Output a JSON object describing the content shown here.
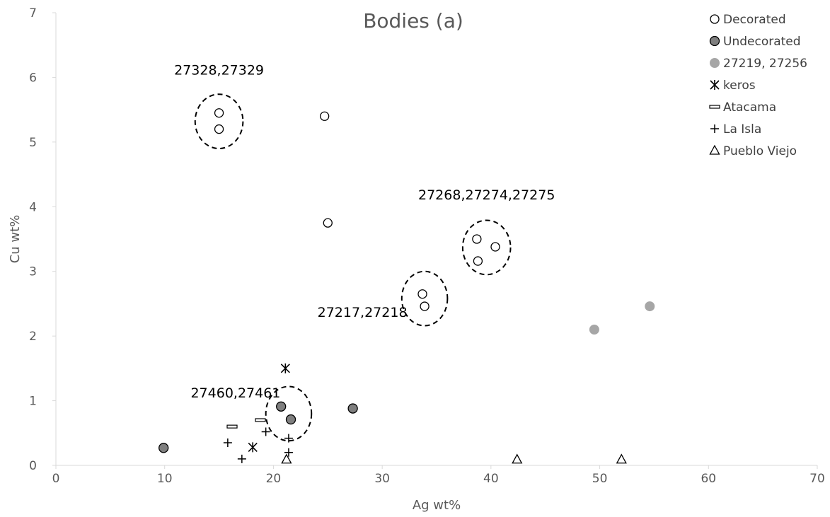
{
  "chart_data": {
    "type": "scatter",
    "title": "Bodies (a)",
    "xlabel": "Ag wt%",
    "ylabel": "Cu wt%",
    "xlim": [
      0,
      70
    ],
    "ylim": [
      0,
      7
    ],
    "xticks": [
      "0",
      "10",
      "20",
      "30",
      "40",
      "50",
      "60",
      "70"
    ],
    "yticks": [
      "0",
      "1",
      "2",
      "3",
      "4",
      "5",
      "6",
      "7"
    ],
    "grid": false,
    "legend_position": "top-right",
    "series": [
      {
        "name": "Decorated",
        "marker": "circle-open",
        "color": "#000000",
        "points": [
          {
            "x": 15.0,
            "y": 5.45
          },
          {
            "x": 15.0,
            "y": 5.2
          },
          {
            "x": 24.7,
            "y": 5.4
          },
          {
            "x": 25.0,
            "y": 3.75
          },
          {
            "x": 38.7,
            "y": 3.5
          },
          {
            "x": 40.4,
            "y": 3.38
          },
          {
            "x": 38.8,
            "y": 3.16
          },
          {
            "x": 33.7,
            "y": 2.65
          },
          {
            "x": 33.9,
            "y": 2.46
          }
        ]
      },
      {
        "name": "Undecorated",
        "marker": "circle-filled",
        "color": "#7f7f7f",
        "points": [
          {
            "x": 9.9,
            "y": 0.27
          },
          {
            "x": 20.7,
            "y": 0.91
          },
          {
            "x": 21.6,
            "y": 0.71
          },
          {
            "x": 27.3,
            "y": 0.88
          }
        ]
      },
      {
        "name": "27219, 27256",
        "marker": "circle-gray",
        "color": "#a6a6a6",
        "points": [
          {
            "x": 49.5,
            "y": 2.1
          },
          {
            "x": 54.6,
            "y": 2.46
          }
        ]
      },
      {
        "name": "keros",
        "marker": "asterisk",
        "color": "#000000",
        "points": [
          {
            "x": 21.1,
            "y": 1.5
          },
          {
            "x": 18.1,
            "y": 0.28
          }
        ]
      },
      {
        "name": "Atacama",
        "marker": "dash",
        "color": "#000000",
        "points": [
          {
            "x": 16.2,
            "y": 0.6
          },
          {
            "x": 18.8,
            "y": 0.7
          }
        ]
      },
      {
        "name": "La Isla",
        "marker": "plus",
        "color": "#000000",
        "points": [
          {
            "x": 15.8,
            "y": 0.35
          },
          {
            "x": 17.1,
            "y": 0.1
          },
          {
            "x": 19.3,
            "y": 0.52
          },
          {
            "x": 21.4,
            "y": 0.42
          },
          {
            "x": 21.4,
            "y": 0.2
          }
        ]
      },
      {
        "name": "Pueblo Viejo",
        "marker": "triangle-open",
        "color": "#000000",
        "points": [
          {
            "x": 21.2,
            "y": 0.09
          },
          {
            "x": 42.4,
            "y": 0.09
          },
          {
            "x": 52.0,
            "y": 0.09
          }
        ]
      }
    ],
    "annotations": [
      {
        "text": "27328,27329",
        "circle": {
          "cx": 15.0,
          "cy": 5.32,
          "rx": 2.2,
          "ry": 0.42
        }
      },
      {
        "text": "27268,27274,27275",
        "circle": {
          "cx": 39.6,
          "cy": 3.37,
          "rx": 2.2,
          "ry": 0.42
        }
      },
      {
        "text": "27217,27218",
        "circle": {
          "cx": 33.9,
          "cy": 2.58,
          "rx": 2.1,
          "ry": 0.42
        }
      },
      {
        "text": "27460,27461",
        "circle": {
          "cx": 21.4,
          "cy": 0.8,
          "rx": 2.1,
          "ry": 0.42
        }
      }
    ]
  }
}
